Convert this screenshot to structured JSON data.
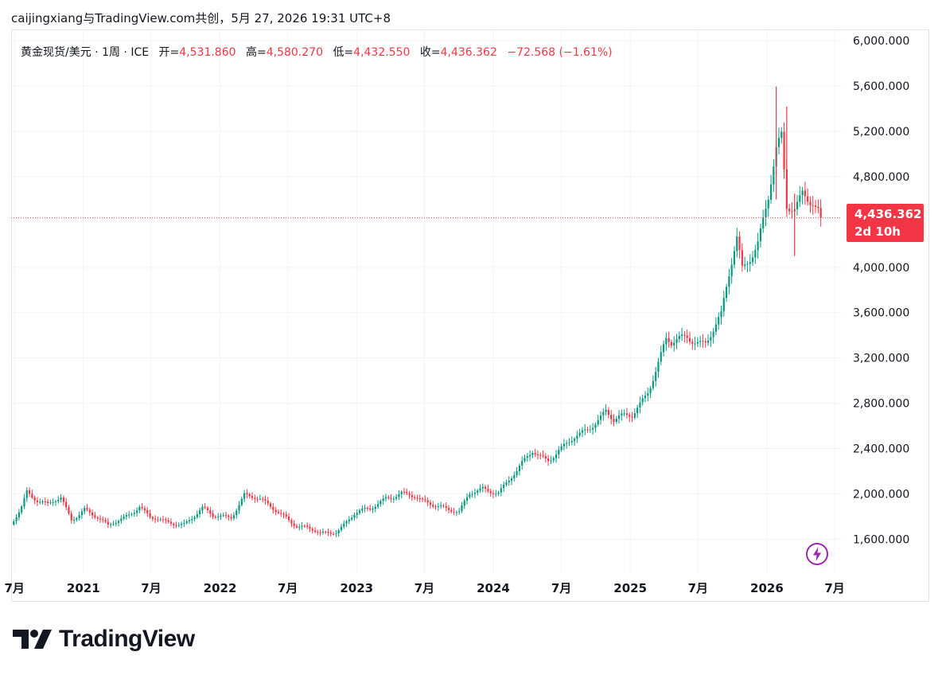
{
  "header": {
    "text": "caijingxiang与TradingView.com共创，5月 27, 2026 19:31 UTC+8"
  },
  "legend": {
    "symbol": "黄金现货/美元 · 1周 · ICE",
    "open_label": "开=",
    "open": "4,531.860",
    "high_label": "高=",
    "high": "4,580.270",
    "low_label": "低=",
    "low": "4,432.550",
    "close_label": "收=",
    "close": "4,436.362",
    "change": "−72.568 (−1.61%)"
  },
  "price_tag": {
    "price": "4,436.362",
    "countdown": "2d 10h"
  },
  "logo": {
    "text": "TradingView"
  },
  "icons": {
    "bolt": "lightning-icon",
    "logo": "tradingview-logo-icon"
  },
  "colors": {
    "up": "#089981",
    "down": "#f23645",
    "grid": "#f0f3fa",
    "text": "#131722"
  },
  "chart_data": {
    "type": "candlestick",
    "title": "黄金现货/美元 · 1周 · ICE",
    "xlabel": "",
    "ylabel": "",
    "ylim": [
      1300,
      6100
    ],
    "xlim": [
      "2020-06-22",
      "2026-07-20"
    ],
    "y_ticks": [
      "1,600.000",
      "2,000.000",
      "2,400.000",
      "2,800.000",
      "3,200.000",
      "3,600.000",
      "4,000.000",
      "4,800.000",
      "5,200.000",
      "5,600.000",
      "6,000.000"
    ],
    "y_tick_values": [
      1600,
      2000,
      2400,
      2800,
      3200,
      3600,
      4000,
      4800,
      5200,
      5600,
      6000
    ],
    "x_ticks": [
      {
        "label": "7月",
        "date": "2020-07-01"
      },
      {
        "label": "2021",
        "date": "2021-01-01"
      },
      {
        "label": "7月",
        "date": "2021-07-01"
      },
      {
        "label": "2022",
        "date": "2022-01-01"
      },
      {
        "label": "7月",
        "date": "2022-07-01"
      },
      {
        "label": "2023",
        "date": "2023-01-01"
      },
      {
        "label": "7月",
        "date": "2023-07-01"
      },
      {
        "label": "2024",
        "date": "2024-01-01"
      },
      {
        "label": "7月",
        "date": "2024-07-01"
      },
      {
        "label": "2025",
        "date": "2025-01-01"
      },
      {
        "label": "7月",
        "date": "2025-07-01"
      },
      {
        "label": "2026",
        "date": "2026-01-01"
      },
      {
        "label": "7月",
        "date": "2026-07-01"
      }
    ],
    "last_price": 4436.362,
    "close_path": [
      [
        "2020-06-22",
        1720
      ],
      [
        "2020-07-20",
        1900
      ],
      [
        "2020-08-03",
        2040
      ],
      [
        "2020-08-31",
        1950
      ],
      [
        "2020-09-28",
        1890
      ],
      [
        "2020-11-02",
        1950
      ],
      [
        "2020-11-30",
        1780
      ],
      [
        "2021-01-04",
        1880
      ],
      [
        "2021-03-08",
        1700
      ],
      [
        "2021-05-31",
        1900
      ],
      [
        "2021-06-28",
        1780
      ],
      [
        "2021-08-09",
        1740
      ],
      [
        "2021-09-27",
        1750
      ],
      [
        "2021-11-15",
        1860
      ],
      [
        "2021-12-13",
        1790
      ],
      [
        "2022-01-31",
        1810
      ],
      [
        "2022-03-07",
        2000
      ],
      [
        "2022-04-18",
        1930
      ],
      [
        "2022-06-27",
        1810
      ],
      [
        "2022-07-25",
        1720
      ],
      [
        "2022-09-26",
        1640
      ],
      [
        "2022-11-07",
        1680
      ],
      [
        "2022-12-26",
        1820
      ],
      [
        "2023-02-06",
        1850
      ],
      [
        "2023-03-20",
        1980
      ],
      [
        "2023-05-01",
        2010
      ],
      [
        "2023-06-26",
        1920
      ],
      [
        "2023-08-14",
        1910
      ],
      [
        "2023-10-02",
        1830
      ],
      [
        "2023-10-30",
        1980
      ],
      [
        "2023-12-04",
        2050
      ],
      [
        "2024-01-15",
        2030
      ],
      [
        "2024-03-04",
        2180
      ],
      [
        "2024-04-15",
        2380
      ],
      [
        "2024-05-27",
        2320
      ],
      [
        "2024-07-15",
        2420
      ],
      [
        "2024-08-19",
        2510
      ],
      [
        "2024-10-28",
        2750
      ],
      [
        "2024-11-18",
        2640
      ],
      [
        "2025-01-06",
        2680
      ],
      [
        "2025-02-17",
        2930
      ],
      [
        "2025-04-07",
        3350
      ],
      [
        "2025-04-21",
        3300
      ],
      [
        "2025-06-02",
        3380
      ],
      [
        "2025-07-21",
        3360
      ],
      [
        "2025-09-01",
        3550
      ],
      [
        "2025-10-13",
        4250
      ],
      [
        "2025-10-27",
        4000
      ],
      [
        "2025-12-08",
        4250
      ],
      [
        "2026-01-05",
        4600
      ],
      [
        "2026-01-26",
        5000
      ],
      [
        "2026-02-09",
        5100
      ],
      [
        "2026-02-23",
        4500
      ],
      [
        "2026-03-16",
        4550
      ],
      [
        "2026-04-06",
        4700
      ],
      [
        "2026-05-04",
        4600
      ],
      [
        "2026-05-25",
        4436
      ]
    ],
    "spikes": [
      {
        "date": "2026-01-26",
        "high": 5595,
        "low": 4600
      },
      {
        "date": "2026-02-23",
        "high": 5420,
        "low": 4500
      },
      {
        "date": "2026-03-16",
        "high": 4650,
        "low": 4100
      }
    ]
  }
}
